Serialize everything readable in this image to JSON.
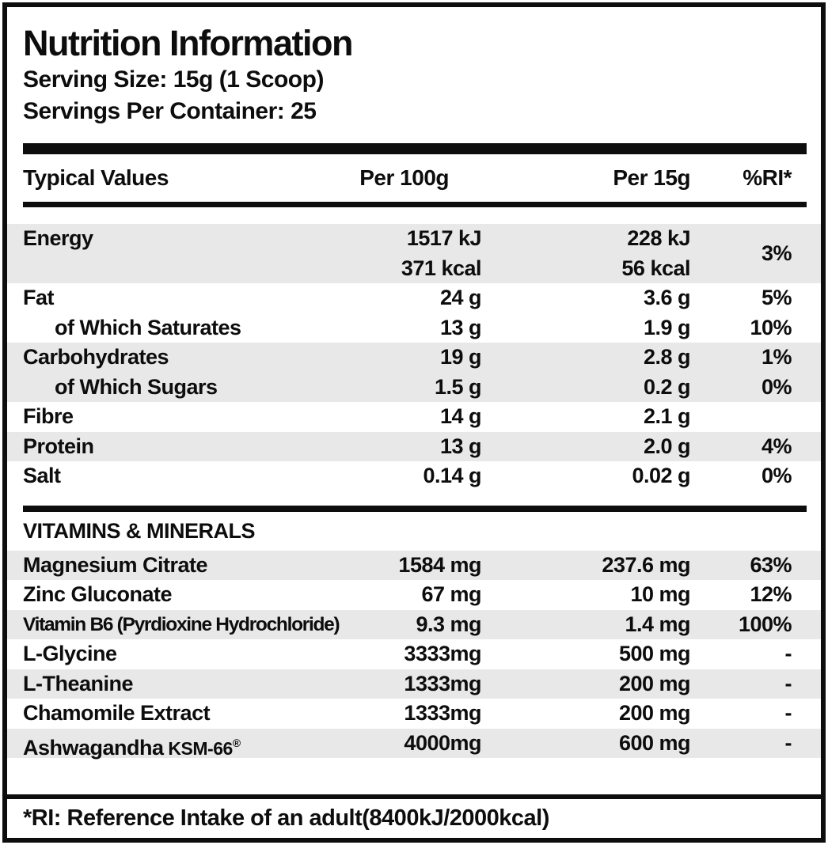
{
  "header": {
    "title": "Nutrition Information",
    "serving_size": "Serving Size: 15g (1 Scoop)",
    "servings_per_container": "Servings Per Container: 25"
  },
  "columns": {
    "label": "Typical Values",
    "per100": "Per 100g",
    "per15": "Per 15g",
    "ri": "%RI*"
  },
  "nutrition_rows": [
    {
      "label": "Energy",
      "indent": false,
      "per100": [
        "1517 kJ",
        "371 kcal"
      ],
      "per15": [
        "228 kJ",
        "56 kcal"
      ],
      "ri": "3%",
      "shaded": true
    },
    {
      "label": "Fat",
      "indent": false,
      "per100": [
        "24 g"
      ],
      "per15": [
        "3.6 g"
      ],
      "ri": "5%",
      "shaded": false
    },
    {
      "label": "of Which Saturates",
      "indent": true,
      "per100": [
        "13 g"
      ],
      "per15": [
        "1.9 g"
      ],
      "ri": "10%",
      "shaded": false
    },
    {
      "label": "Carbohydrates",
      "indent": false,
      "per100": [
        "19 g"
      ],
      "per15": [
        "2.8 g"
      ],
      "ri": "1%",
      "shaded": true
    },
    {
      "label": "of Which Sugars",
      "indent": true,
      "per100": [
        "1.5 g"
      ],
      "per15": [
        "0.2 g"
      ],
      "ri": "0%",
      "shaded": true
    },
    {
      "label": "Fibre",
      "indent": false,
      "per100": [
        "14 g"
      ],
      "per15": [
        "2.1 g"
      ],
      "ri": "",
      "shaded": false
    },
    {
      "label": "Protein",
      "indent": false,
      "per100": [
        "13 g"
      ],
      "per15": [
        "2.0 g"
      ],
      "ri": "4%",
      "shaded": true
    },
    {
      "label": "Salt",
      "indent": false,
      "per100": [
        "0.14 g"
      ],
      "per15": [
        "0.02 g"
      ],
      "ri": "0%",
      "shaded": false
    }
  ],
  "section": {
    "title": "VITAMINS & MINERALS"
  },
  "supplement_rows": [
    {
      "label": "Magnesium Citrate",
      "condensed": false,
      "per100": "1584 mg",
      "per15": "237.6 mg",
      "ri": "63%",
      "shaded": true
    },
    {
      "label": "Zinc Gluconate",
      "condensed": false,
      "per100": "67 mg",
      "per15": "10 mg",
      "ri": "12%",
      "shaded": false
    },
    {
      "label": "Vitamin B6 (Pyrdioxine Hydrochloride)",
      "condensed": true,
      "per100": "9.3 mg",
      "per15": "1.4 mg",
      "ri": "100%",
      "shaded": true
    },
    {
      "label": "L-Glycine",
      "condensed": false,
      "per100": "3333mg",
      "per15": "500 mg",
      "ri": "-",
      "shaded": false
    },
    {
      "label": "L-Theanine",
      "condensed": false,
      "per100": "1333mg",
      "per15": "200 mg",
      "ri": "-",
      "shaded": true
    },
    {
      "label": "Chamomile Extract",
      "condensed": false,
      "per100": "1333mg",
      "per15": "200 mg",
      "ri": "-",
      "shaded": false
    },
    {
      "label": "Ashwagandha",
      "label_suffix": "KSM-66",
      "label_reg": "®",
      "condensed": false,
      "per100": "4000mg",
      "per15": "600 mg",
      "ri": "-",
      "shaded": true
    }
  ],
  "footnote": "*RI: Reference Intake of an adult(8400kJ/2000kcal)",
  "colors": {
    "text": "#0d0d0d",
    "stripe": "#e8e8e8",
    "border": "#0d0d0d"
  }
}
